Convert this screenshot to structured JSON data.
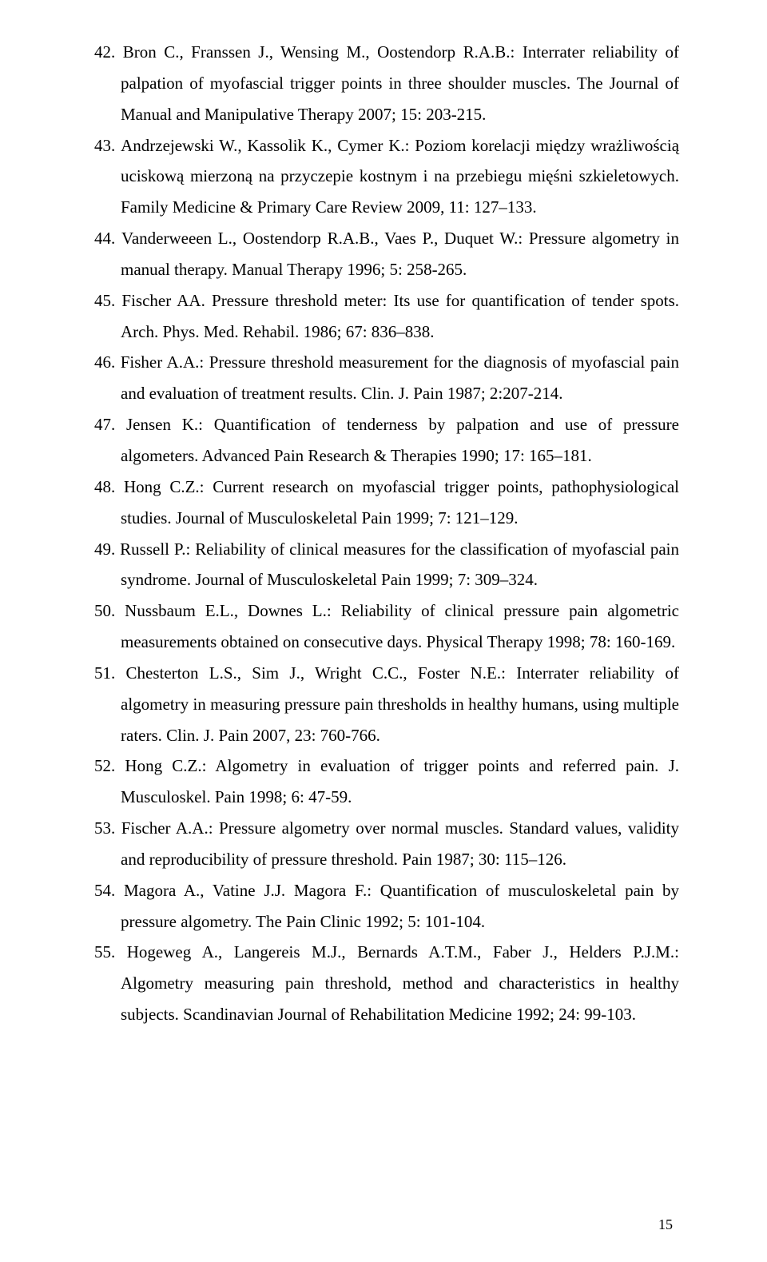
{
  "page_number": "15",
  "references": [
    {
      "num": "42",
      "text": "Bron C., Franssen J., Wensing M., Oostendorp R.A.B.: Interrater reliability of palpation of myofascial trigger points in three shoulder muscles. The Journal of Manual and Manipulative Therapy 2007; 15: 203-215."
    },
    {
      "num": "43",
      "text": "Andrzejewski W., Kassolik K., Cymer K.: Poziom korelacji między wrażliwością uciskową mierzoną na przyczepie kostnym i na przebiegu mięśni szkieletowych. Family Medicine & Primary Care Review 2009, 11: 127–133."
    },
    {
      "num": "44",
      "text": "Vanderweeen L., Oostendorp R.A.B., Vaes P., Duquet W.: Pressure algometry in manual therapy. Manual Therapy 1996; 5: 258-265."
    },
    {
      "num": "45",
      "text": "Fischer AA. Pressure threshold meter: Its use for quantification of tender spots. Arch. Phys. Med. Rehabil. 1986; 67: 836–838."
    },
    {
      "num": "46",
      "text": "Fisher A.A.: Pressure threshold measurement for the diagnosis of myofascial pain and evaluation of treatment results. Clin. J. Pain 1987; 2:207-214."
    },
    {
      "num": "47",
      "text": "Jensen K.: Quantification of tenderness by palpation and use of pressure algometers. Advanced Pain Research & Therapies 1990; 17: 165–181."
    },
    {
      "num": "48",
      "text": "Hong C.Z.: Current research on myofascial trigger points, pathophysiological studies. Journal of Musculoskeletal Pain 1999; 7: 121–129."
    },
    {
      "num": "49",
      "text": "Russell P.: Reliability of clinical measures for the classification of myofascial pain syndrome. Journal of Musculoskeletal Pain 1999; 7: 309–324."
    },
    {
      "num": "50",
      "text": "Nussbaum E.L., Downes L.: Reliability of clinical pressure pain algometric measurements obtained on consecutive days. Physical Therapy 1998; 78: 160-169."
    },
    {
      "num": "51",
      "text": "Chesterton L.S., Sim J., Wright C.C., Foster N.E.: Interrater reliability of algometry in measuring pressure pain thresholds in healthy humans, using multiple raters. Clin. J. Pain 2007, 23: 760-766."
    },
    {
      "num": "52",
      "text": "Hong C.Z.: Algometry in evaluation of trigger points and referred pain. J. Musculoskel. Pain 1998; 6: 47-59."
    },
    {
      "num": "53",
      "text": "Fischer A.A.: Pressure algometry over normal muscles. Standard values, validity and reproducibility of pressure threshold. Pain 1987; 30: 115–126."
    },
    {
      "num": "54",
      "text": "Magora A., Vatine J.J. Magora F.: Quantification of musculoskeletal pain by pressure algometry. The Pain Clinic 1992; 5: 101-104."
    },
    {
      "num": "55",
      "text": "Hogeweg A., Langereis M.J., Bernards A.T.M., Faber J., Helders P.J.M.: Algometry measuring pain threshold, method and characteristics in healthy subjects. Scandinavian Journal of Rehabilitation Medicine 1992; 24: 99-103."
    }
  ]
}
